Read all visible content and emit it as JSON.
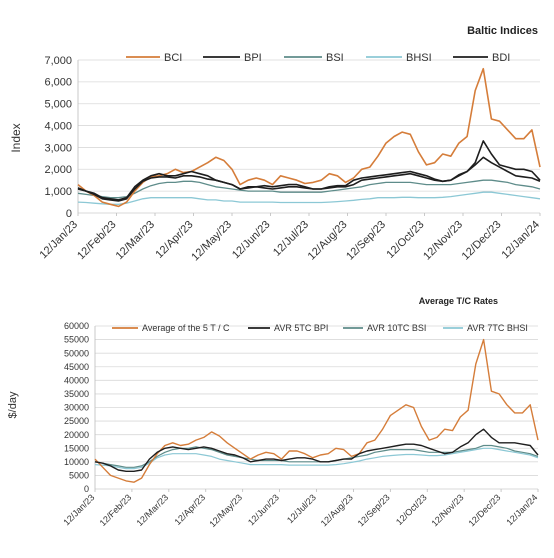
{
  "colors": {
    "orange": "#d57d3a",
    "black": "#1e1e1e",
    "teal": "#5e8c8a",
    "lightblue": "#8cc8d5",
    "grid": "#d9d9d9"
  },
  "chart_data": [
    {
      "type": "line",
      "title": "Baltic Indices",
      "xlabel": "",
      "ylabel": "Index",
      "ylim": [
        0,
        7000
      ],
      "yticks": [
        0,
        1000,
        2000,
        3000,
        4000,
        5000,
        6000,
        7000
      ],
      "ytick_labels": [
        "0",
        "1,000",
        "2,000",
        "3,000",
        "4,000",
        "5,000",
        "6,000",
        "7,000"
      ],
      "x_tick_labels": [
        "12/Jan/23",
        "12/Feb/23",
        "12/Mar/23",
        "12/Apr/23",
        "12/May/23",
        "12/Jun/23",
        "12/Jul/23",
        "12/Aug/23",
        "12/Sep/23",
        "12/Oct/23",
        "12/Nov/23",
        "12/Dec/23",
        "12/Jan/24"
      ],
      "grid": true,
      "legend_position": "top",
      "series": [
        {
          "name": "BCI",
          "color": "#d57d3a",
          "values": [
            1300,
            1000,
            800,
            500,
            400,
            300,
            500,
            1000,
            1400,
            1650,
            1700,
            1800,
            2000,
            1850,
            1900,
            2100,
            2300,
            2550,
            2400,
            2000,
            1300,
            1500,
            1600,
            1500,
            1300,
            1700,
            1600,
            1500,
            1350,
            1400,
            1500,
            1800,
            1700,
            1400,
            1600,
            2000,
            2100,
            2600,
            3200,
            3500,
            3700,
            3600,
            2800,
            2200,
            2300,
            2700,
            2600,
            3200,
            3500,
            5600,
            6600,
            4300,
            4200,
            3800,
            3400,
            3400,
            3800,
            2100
          ]
        },
        {
          "name": "BPI",
          "color": "#1e1e1e",
          "values": [
            1100,
            1000,
            900,
            700,
            650,
            600,
            700,
            1200,
            1500,
            1700,
            1800,
            1700,
            1700,
            1800,
            1900,
            1800,
            1700,
            1500,
            1400,
            1300,
            1100,
            1200,
            1200,
            1250,
            1200,
            1250,
            1300,
            1300,
            1200,
            1100,
            1100,
            1200,
            1250,
            1250,
            1500,
            1600,
            1650,
            1700,
            1750,
            1800,
            1850,
            1900,
            1800,
            1700,
            1550,
            1450,
            1500,
            1750,
            1900,
            2300,
            3300,
            2700,
            2200,
            2100,
            2000,
            2000,
            1900,
            1500
          ]
        },
        {
          "name": "BSI",
          "color": "#5e8c8a",
          "values": [
            900,
            850,
            800,
            750,
            700,
            700,
            750,
            900,
            1100,
            1250,
            1350,
            1400,
            1400,
            1450,
            1450,
            1400,
            1300,
            1200,
            1150,
            1100,
            1050,
            1000,
            1000,
            1000,
            1000,
            950,
            950,
            950,
            950,
            950,
            950,
            1000,
            1050,
            1100,
            1150,
            1200,
            1300,
            1350,
            1400,
            1400,
            1400,
            1400,
            1350,
            1300,
            1300,
            1300,
            1300,
            1350,
            1400,
            1450,
            1500,
            1500,
            1450,
            1400,
            1300,
            1250,
            1200,
            1100
          ]
        },
        {
          "name": "BHSI",
          "color": "#8cc8d5",
          "values": [
            500,
            480,
            450,
            420,
            400,
            400,
            450,
            550,
            650,
            700,
            700,
            700,
            700,
            700,
            700,
            650,
            600,
            600,
            550,
            550,
            500,
            500,
            500,
            500,
            500,
            480,
            480,
            480,
            480,
            480,
            480,
            500,
            520,
            550,
            580,
            620,
            650,
            700,
            700,
            700,
            720,
            720,
            700,
            700,
            700,
            720,
            750,
            800,
            850,
            900,
            950,
            950,
            900,
            850,
            800,
            750,
            700,
            650
          ]
        },
        {
          "name": "BDI",
          "color": "#1e1e1e",
          "values": [
            1150,
            1000,
            850,
            650,
            600,
            550,
            650,
            1100,
            1450,
            1600,
            1650,
            1650,
            1600,
            1700,
            1700,
            1650,
            1550,
            1500,
            1400,
            1300,
            1100,
            1150,
            1200,
            1150,
            1100,
            1150,
            1200,
            1200,
            1150,
            1100,
            1100,
            1150,
            1200,
            1200,
            1300,
            1500,
            1550,
            1600,
            1650,
            1700,
            1750,
            1800,
            1700,
            1600,
            1500,
            1450,
            1500,
            1700,
            1900,
            2200,
            2550,
            2300,
            2100,
            1900,
            1700,
            1650,
            1600,
            1450
          ]
        }
      ]
    },
    {
      "type": "line",
      "title": "Average T/C Rates",
      "xlabel": "",
      "ylabel": "$/day",
      "ylim": [
        0,
        60000
      ],
      "yticks": [
        0,
        5000,
        10000,
        15000,
        20000,
        25000,
        30000,
        35000,
        40000,
        45000,
        50000,
        55000,
        60000
      ],
      "ytick_labels": [
        "0",
        "5000",
        "10000",
        "15000",
        "20000",
        "25000",
        "30000",
        "35000",
        "40000",
        "45000",
        "50000",
        "55000",
        "60000"
      ],
      "x_tick_labels": [
        "12/Jan/23",
        "12/Feb/23",
        "12/Mar/23",
        "12/Apr/23",
        "12/May/23",
        "12/Jun/23",
        "12/Jul/23",
        "12/Aug/23",
        "12/Sep/23",
        "12/Oct/23",
        "12/Nov/23",
        "12/Dec/23",
        "12/Jan/24"
      ],
      "grid": true,
      "legend_position": "top",
      "series": [
        {
          "name": "Average of the 5 T / C",
          "color": "#d57d3a",
          "values": [
            11000,
            8000,
            5000,
            4000,
            3000,
            2500,
            4000,
            9000,
            13000,
            16000,
            17000,
            16000,
            16500,
            18000,
            19000,
            21000,
            19500,
            17000,
            15000,
            13000,
            11000,
            12500,
            13500,
            13000,
            11000,
            14000,
            14000,
            13000,
            11500,
            12500,
            13000,
            15000,
            14500,
            12000,
            13000,
            17000,
            18000,
            22000,
            27000,
            29000,
            31000,
            30000,
            23000,
            18000,
            19000,
            22000,
            21500,
            26500,
            29000,
            46000,
            55000,
            36000,
            35000,
            31000,
            28000,
            28000,
            31000,
            18000
          ]
        },
        {
          "name": "AVR 5TC BPI",
          "color": "#1e1e1e",
          "values": [
            10000,
            9500,
            8500,
            7000,
            6500,
            6500,
            7000,
            11000,
            13500,
            15000,
            15500,
            15000,
            14500,
            15000,
            15500,
            15000,
            14000,
            13000,
            12500,
            11500,
            10000,
            10500,
            11000,
            11000,
            10500,
            11000,
            11500,
            11500,
            11000,
            10000,
            10000,
            10500,
            11000,
            11000,
            13000,
            14000,
            14500,
            15000,
            15500,
            16000,
            16500,
            16500,
            16000,
            15000,
            14000,
            13000,
            13500,
            15500,
            17000,
            20000,
            22000,
            19000,
            17000,
            17000,
            17000,
            16500,
            16000,
            12500
          ]
        },
        {
          "name": "AVR 10TC BSI",
          "color": "#5e8c8a",
          "values": [
            10000,
            9500,
            9000,
            8500,
            8000,
            8000,
            8500,
            10000,
            12000,
            13500,
            14500,
            15000,
            15000,
            15500,
            15000,
            14500,
            13500,
            12500,
            12000,
            11500,
            11000,
            10500,
            10500,
            10500,
            10500,
            10000,
            10000,
            10000,
            10000,
            10000,
            10000,
            10500,
            11000,
            11500,
            12000,
            12500,
            13500,
            14000,
            14500,
            14500,
            14500,
            14500,
            14000,
            13500,
            13500,
            13500,
            13500,
            14000,
            14500,
            15000,
            16000,
            16000,
            15500,
            15000,
            14000,
            13500,
            13000,
            12000
          ]
        },
        {
          "name": "AVR 7TC BHSI",
          "color": "#8cc8d5",
          "values": [
            9000,
            8800,
            8500,
            8000,
            7500,
            7500,
            8000,
            9500,
            11500,
            12500,
            13000,
            13000,
            13000,
            13000,
            12500,
            12000,
            11000,
            10500,
            10000,
            9500,
            9000,
            9000,
            9000,
            9000,
            9000,
            8800,
            8800,
            8800,
            8800,
            8800,
            8800,
            9000,
            9300,
            9800,
            10300,
            11000,
            11500,
            12000,
            12300,
            12500,
            12700,
            12700,
            12500,
            12300,
            12300,
            12500,
            13000,
            13500,
            14000,
            14500,
            15000,
            15000,
            14500,
            14000,
            13500,
            13000,
            12500,
            11500
          ]
        }
      ]
    }
  ]
}
